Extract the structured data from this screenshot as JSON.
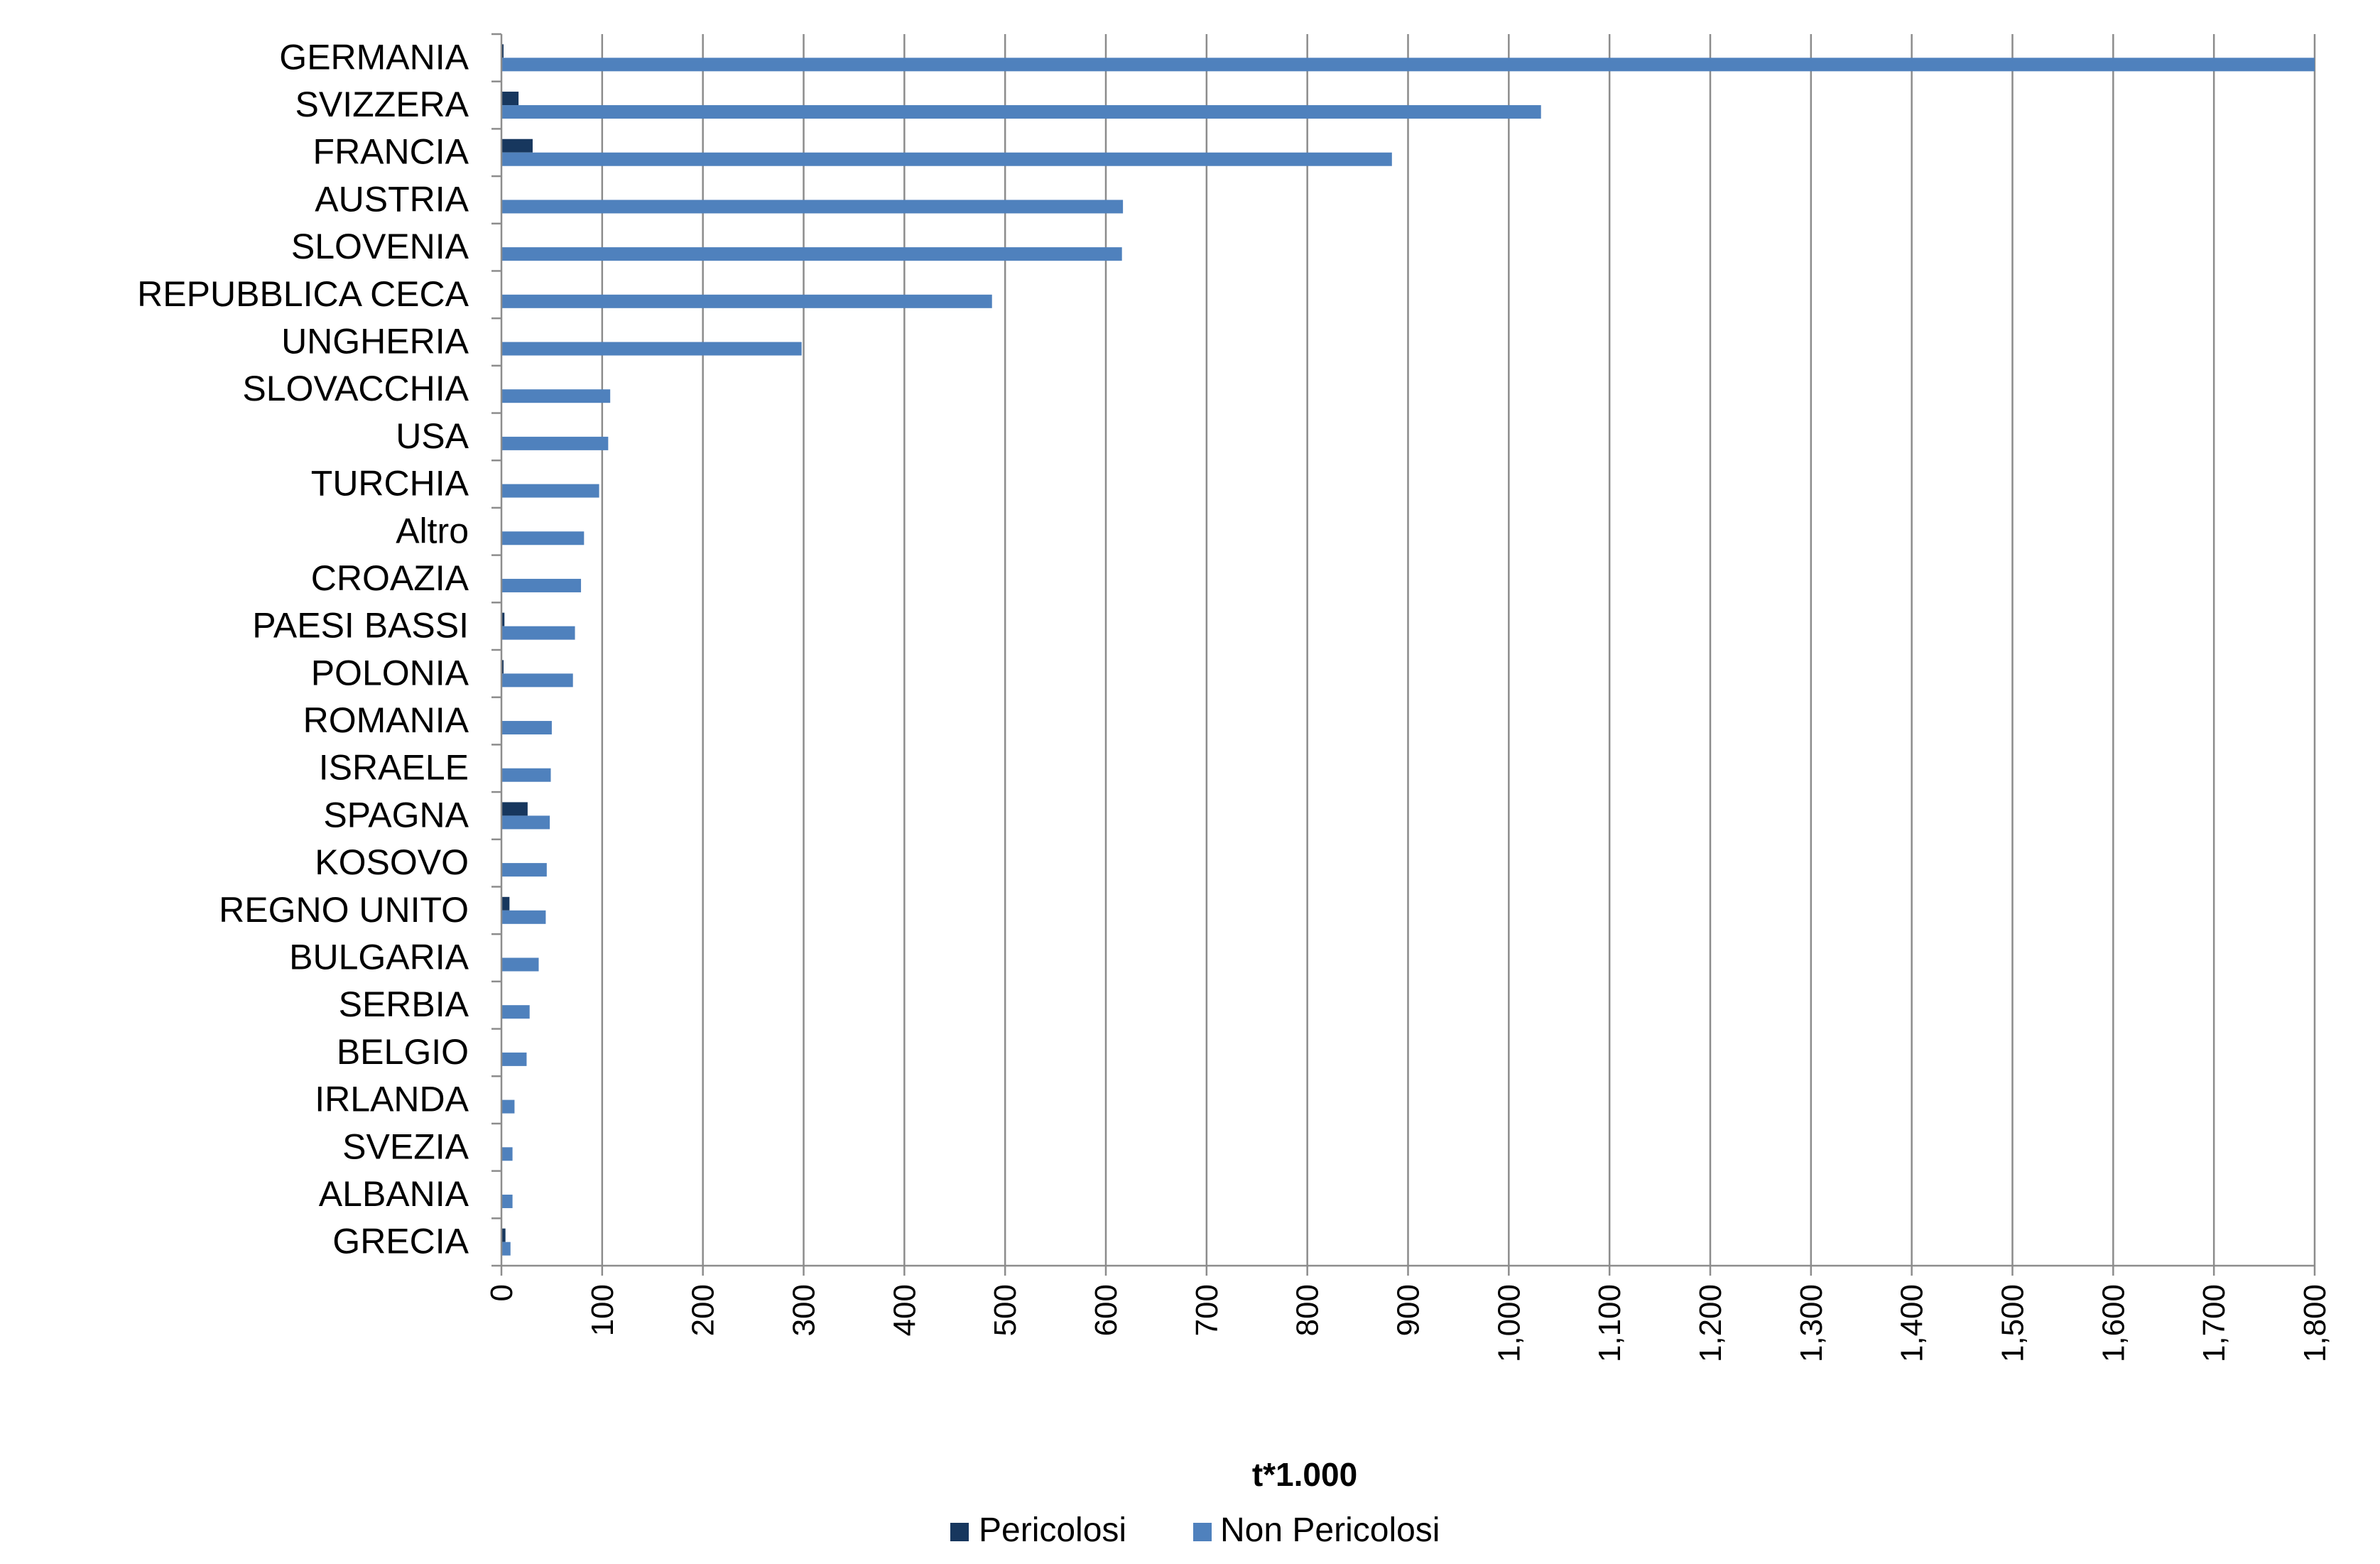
{
  "chart_data": {
    "type": "bar",
    "orientation": "horizontal",
    "categories": [
      "GERMANIA",
      "SVIZZERA",
      "FRANCIA",
      "AUSTRIA",
      "SLOVENIA",
      "REPUBBLICA CECA",
      "UNGHERIA",
      "SLOVACCHIA",
      "USA",
      "TURCHIA",
      "Altro",
      "CROAZIA",
      "PAESI BASSI",
      "POLONIA",
      "ROMANIA",
      "ISRAELE",
      "SPAGNA",
      "KOSOVO",
      "REGNO UNITO",
      "BULGARIA",
      "SERBIA",
      "BELGIO",
      "IRLANDA",
      "SVEZIA",
      "ALBANIA",
      "GRECIA"
    ],
    "series": [
      {
        "name": "Pericolosi",
        "color": "#17375e",
        "values": [
          2,
          17,
          31,
          0,
          0,
          0,
          0,
          0,
          0,
          0,
          0,
          0,
          3,
          1,
          0,
          0,
          26,
          0,
          8,
          0,
          0,
          0,
          0,
          0,
          0,
          4
        ]
      },
      {
        "name": "Non Pericolosi",
        "color": "#4f81bd",
        "values": [
          1800,
          1032,
          884,
          617,
          616,
          487,
          298,
          108,
          106,
          97,
          82,
          79,
          73,
          71,
          50,
          49,
          48,
          45,
          44,
          37,
          28,
          25,
          13,
          11,
          11,
          9
        ]
      }
    ],
    "xlabel": "t*1.000",
    "xlim": [
      0,
      1800
    ],
    "xticks": [
      "0",
      "100",
      "200",
      "300",
      "400",
      "500",
      "600",
      "700",
      "800",
      "900",
      "1,000",
      "1,100",
      "1,200",
      "1,300",
      "1,400",
      "1,500",
      "1,600",
      "1,700",
      "1,800"
    ],
    "grid": "vertical major gridlines",
    "legend": "bottom-center"
  }
}
